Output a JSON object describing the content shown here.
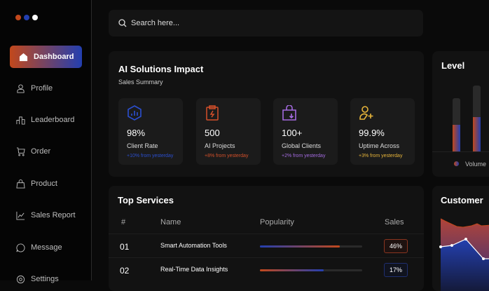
{
  "colors": {
    "accent_orange": "#c2481c",
    "accent_blue": "#233fb0",
    "purple": "#a46be0",
    "yellow": "#e8b53a"
  },
  "sidebar": {
    "items": [
      {
        "label": "Dashboard",
        "icon": "home-icon"
      },
      {
        "label": "Profile",
        "icon": "user-icon"
      },
      {
        "label": "Leaderboard",
        "icon": "bar-chart-icon"
      },
      {
        "label": "Order",
        "icon": "cart-icon"
      },
      {
        "label": "Product",
        "icon": "bag-icon"
      },
      {
        "label": "Sales Report",
        "icon": "line-chart-icon"
      },
      {
        "label": "Message",
        "icon": "message-icon"
      },
      {
        "label": "Settings",
        "icon": "gear-icon"
      }
    ]
  },
  "search": {
    "placeholder": "Search here..."
  },
  "impact": {
    "title": "AI Solutions Impact",
    "subtitle": "Sales Summary",
    "stats": [
      {
        "value": "98%",
        "label": "Client Rate",
        "change": "+10% from yesterday",
        "color": "#2b4fd0"
      },
      {
        "value": "500",
        "label": "AI Projects",
        "change": "+8% from yesterday",
        "color": "#d4502a"
      },
      {
        "value": "100+",
        "label": "Global Clients",
        "change": "+2% from yesterday",
        "color": "#a46be0"
      },
      {
        "value": "99.9%",
        "label": "Uptime Across",
        "change": "+3% from yesterday",
        "color": "#e8b53a"
      }
    ]
  },
  "services": {
    "title": "Top Services",
    "headers": [
      "#",
      "Name",
      "Popularity",
      "Sales"
    ],
    "rows": [
      {
        "num": "01",
        "name": "Smart Automation Tools",
        "popularity": 78,
        "sales": "46%"
      },
      {
        "num": "02",
        "name": "Real-Time Data Insights",
        "popularity": 62,
        "sales": "17%"
      }
    ]
  },
  "level": {
    "title": "Level",
    "legend": "Volume",
    "bars": [
      {
        "fill": 0.5
      },
      {
        "fill": 0.52
      }
    ]
  },
  "customer": {
    "title": "Customer"
  }
}
